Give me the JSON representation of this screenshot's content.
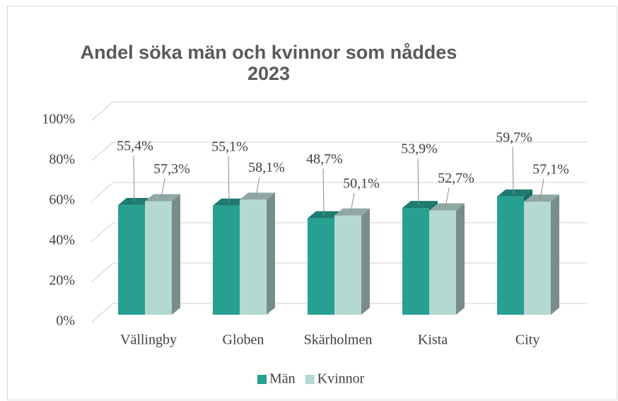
{
  "chart_data": {
    "type": "bar3d",
    "title_lines": [
      "Andel söka män och kvinnor som nåddes",
      "2023"
    ],
    "categories": [
      "Vällingby",
      "Globen",
      "Skärholmen",
      "Kista",
      "City"
    ],
    "series": [
      {
        "name": "Män",
        "color": "#27a092",
        "top": "#1d7b70",
        "side": "#1a6b62",
        "values": [
          55.4,
          55.1,
          48.7,
          53.9,
          59.7
        ],
        "value_labels": [
          "55,4%",
          "55,1%",
          "48,7%",
          "53,9%",
          "59,7%"
        ]
      },
      {
        "name": "Kvinnor",
        "color": "#b4d8d2",
        "top": "#8fa8a4",
        "side": "#7a8c89",
        "values": [
          57.3,
          58.1,
          50.1,
          52.7,
          57.1
        ],
        "value_labels": [
          "57,3%",
          "58,1%",
          "50,1%",
          "52,7%",
          "57,1%"
        ]
      }
    ],
    "ylim": [
      0,
      100
    ],
    "yticks": [
      {
        "value": 0,
        "label": "0%"
      },
      {
        "value": 20,
        "label": "20%"
      },
      {
        "value": 40,
        "label": "40%"
      },
      {
        "value": 60,
        "label": "60%"
      },
      {
        "value": 80,
        "label": "80%"
      },
      {
        "value": 100,
        "label": "100%"
      }
    ],
    "grid": true,
    "legend": "bottom"
  }
}
